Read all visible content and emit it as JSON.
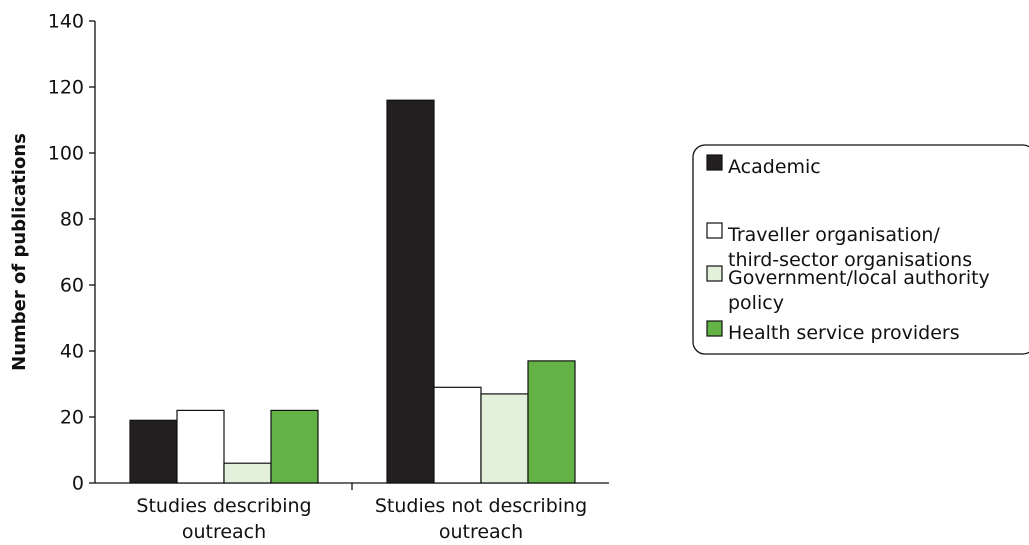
{
  "chart_data": {
    "type": "bar",
    "title": "",
    "xlabel": "",
    "ylabel": "Number of publications",
    "ylim": [
      0,
      140
    ],
    "yticks": [
      0,
      20,
      40,
      60,
      80,
      100,
      120,
      140
    ],
    "grid": false,
    "legend_position": "right",
    "categories": [
      [
        "Studies describing",
        "outreach"
      ],
      [
        "Studies not describing",
        "outreach"
      ]
    ],
    "series": [
      {
        "name": [
          "Academic"
        ],
        "color": "#231f20",
        "values": [
          19,
          116
        ]
      },
      {
        "name": [
          "Traveller organisation/",
          "third-sector organisations"
        ],
        "color": "#ffffff",
        "values": [
          22,
          29
        ]
      },
      {
        "name": [
          "Government/local authority",
          "policy"
        ],
        "color": "#e3f1dc",
        "values": [
          6,
          27
        ]
      },
      {
        "name": [
          "Health service providers"
        ],
        "color": "#62b246",
        "values": [
          22,
          37
        ]
      }
    ]
  }
}
